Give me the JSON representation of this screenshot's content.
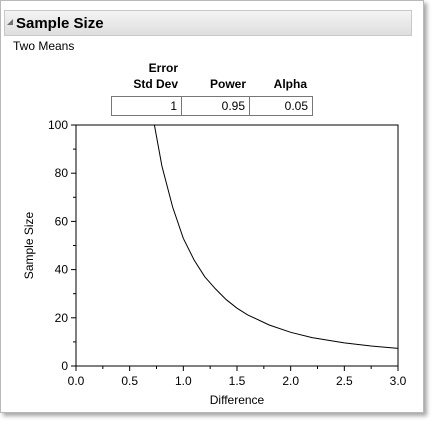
{
  "panel": {
    "title": "Sample Size",
    "subtitle": "Two Means"
  },
  "params": {
    "headers": [
      "Error\nStd Dev",
      "Power",
      "Alpha"
    ],
    "header_lines": [
      [
        "Error",
        "Std Dev"
      ],
      [
        "Power"
      ],
      [
        "Alpha"
      ]
    ],
    "values": [
      "1",
      "0.95",
      "0.05"
    ]
  },
  "chart_data": {
    "type": "line",
    "xlabel": "Difference",
    "ylabel": "Sample Size",
    "xlim": [
      0,
      3
    ],
    "ylim": [
      0,
      100
    ],
    "x_ticks": [
      "0.0",
      "0.5",
      "1.0",
      "1.5",
      "2.0",
      "2.5",
      "3.0"
    ],
    "y_ticks": [
      "0",
      "20",
      "40",
      "60",
      "80",
      "100"
    ],
    "series": [
      {
        "x": [
          0.73,
          0.8,
          0.9,
          1.0,
          1.1,
          1.2,
          1.3,
          1.4,
          1.5,
          1.6,
          1.8,
          2.0,
          2.2,
          2.5,
          2.75,
          3.0
        ],
        "y": [
          100,
          83,
          66,
          53,
          44,
          37,
          32,
          27.5,
          24,
          21.2,
          17,
          14,
          11.8,
          9.6,
          8.3,
          7.3
        ]
      }
    ],
    "line_color": "#000000"
  }
}
